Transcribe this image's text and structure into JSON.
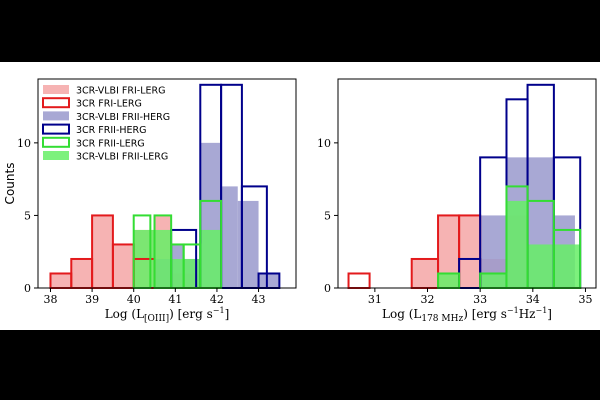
{
  "chart_data": [
    {
      "type": "bar",
      "panel": "left",
      "xlabel": "Log (L[OIII])  [erg s^-1]",
      "xlabel_parts": {
        "main": "Log (L",
        "sub": "[OIII]",
        "after": ")  [erg s",
        "sup": "−1",
        "close": "]"
      },
      "ylabel": "Counts",
      "xlim": [
        37.7,
        43.9
      ],
      "ylim": [
        0,
        14.4
      ],
      "xticks": [
        "38",
        "39",
        "40",
        "41",
        "42",
        "43"
      ],
      "yticks": [
        "0",
        "5",
        "10"
      ],
      "legend_position": "top-left",
      "series": [
        {
          "name": "3CR-VLBI FRI-LERG",
          "style": "filled",
          "color": "#f4a6a6",
          "bins": [
            [
              38.0,
              38.5,
              1
            ],
            [
              38.5,
              39.0,
              2
            ],
            [
              39.0,
              39.5,
              5
            ],
            [
              39.5,
              40.0,
              3
            ],
            [
              40.0,
              40.5,
              4
            ],
            [
              40.5,
              40.9,
              5
            ],
            [
              40.9,
              41.2,
              1
            ],
            [
              41.2,
              41.6,
              1
            ]
          ]
        },
        {
          "name": "3CR FRI-LERG",
          "style": "outline",
          "color": "#e31a1c",
          "bins": [
            [
              38.0,
              38.5,
              1
            ],
            [
              38.5,
              39.0,
              2
            ],
            [
              39.0,
              39.5,
              5
            ],
            [
              39.5,
              40.0,
              3
            ],
            [
              40.0,
              40.5,
              2
            ]
          ]
        },
        {
          "name": "3CR-VLBI FRII-HERG",
          "style": "filled",
          "color": "#9999cc",
          "bins": [
            [
              40.5,
              40.9,
              2
            ],
            [
              40.9,
              41.2,
              3
            ],
            [
              41.2,
              41.6,
              2
            ],
            [
              41.6,
              42.1,
              10
            ],
            [
              42.1,
              42.5,
              7
            ],
            [
              42.5,
              43.0,
              6
            ],
            [
              43.0,
              43.5,
              1
            ]
          ]
        },
        {
          "name": "3CR FRII-HERG",
          "style": "outline",
          "color": "#00008b",
          "bins": [
            [
              40.9,
              41.5,
              4
            ],
            [
              41.6,
              42.1,
              14
            ],
            [
              42.1,
              42.6,
              14
            ],
            [
              42.6,
              43.2,
              7
            ],
            [
              43.0,
              43.5,
              1
            ]
          ]
        },
        {
          "name": "3CR FRII-LERG",
          "style": "outline",
          "color": "#33dd33",
          "bins": [
            [
              40.0,
              40.4,
              5
            ],
            [
              40.5,
              40.9,
              5
            ],
            [
              40.9,
              41.2,
              3
            ],
            [
              41.2,
              41.6,
              3
            ],
            [
              41.6,
              42.1,
              6
            ]
          ]
        },
        {
          "name": "3CR-VLBI FRII-LERG",
          "style": "filled",
          "color": "#66ee66",
          "bins": [
            [
              40.0,
              40.5,
              4
            ],
            [
              40.5,
              40.9,
              4
            ],
            [
              40.9,
              41.2,
              2
            ],
            [
              41.2,
              41.6,
              2
            ],
            [
              41.6,
              42.1,
              4
            ]
          ]
        }
      ]
    },
    {
      "type": "bar",
      "panel": "right",
      "xlabel": "Log (L178 MHz)  [erg s^-1 Hz^-1]",
      "xlabel_parts": {
        "main": "Log (L",
        "sub": "178 MHz",
        "after": ")  [erg s",
        "sup": "−1",
        "mid": "Hz",
        "sup2": "−1",
        "close": "]"
      },
      "ylabel": "",
      "xlim": [
        30.3,
        35.2
      ],
      "ylim": [
        0,
        14.4
      ],
      "xticks": [
        "31",
        "32",
        "33",
        "34",
        "35"
      ],
      "yticks": [
        "0",
        "5",
        "10"
      ],
      "series": [
        {
          "name": "3CR-VLBI FRI-LERG",
          "style": "filled",
          "color": "#f4a6a6",
          "bins": [
            [
              31.7,
              32.2,
              2
            ],
            [
              32.2,
              32.6,
              5
            ],
            [
              32.6,
              33.0,
              5
            ],
            [
              33.0,
              33.5,
              2
            ],
            [
              33.5,
              33.9,
              5
            ]
          ]
        },
        {
          "name": "3CR FRI-LERG",
          "style": "outline",
          "color": "#e31a1c",
          "bins": [
            [
              30.5,
              30.9,
              1
            ],
            [
              31.7,
              32.2,
              2
            ],
            [
              32.2,
              32.6,
              5
            ],
            [
              32.6,
              33.0,
              5
            ]
          ]
        },
        {
          "name": "3CR-VLBI FRII-HERG",
          "style": "filled",
          "color": "#9999cc",
          "bins": [
            [
              33.0,
              33.5,
              5
            ],
            [
              33.5,
              33.9,
              9
            ],
            [
              33.9,
              34.4,
              9
            ],
            [
              34.4,
              34.8,
              5
            ]
          ]
        },
        {
          "name": "3CR FRII-HERG",
          "style": "outline",
          "color": "#00008b",
          "bins": [
            [
              32.6,
              33.0,
              2
            ],
            [
              33.0,
              33.5,
              9
            ],
            [
              33.5,
              33.9,
              13
            ],
            [
              33.9,
              34.4,
              14
            ],
            [
              34.4,
              34.9,
              9
            ]
          ]
        },
        {
          "name": "3CR FRII-LERG",
          "style": "outline",
          "color": "#33dd33",
          "bins": [
            [
              32.2,
              32.6,
              1
            ],
            [
              33.0,
              33.5,
              1
            ],
            [
              33.5,
              33.9,
              7
            ],
            [
              33.9,
              34.4,
              6
            ],
            [
              34.4,
              34.9,
              4
            ]
          ]
        },
        {
          "name": "3CR-VLBI FRII-LERG",
          "style": "filled",
          "color": "#66ee66",
          "bins": [
            [
              32.2,
              32.6,
              1
            ],
            [
              33.0,
              33.5,
              1
            ],
            [
              33.5,
              33.9,
              6
            ],
            [
              33.9,
              34.4,
              3
            ],
            [
              34.4,
              34.9,
              3
            ]
          ]
        }
      ]
    }
  ]
}
